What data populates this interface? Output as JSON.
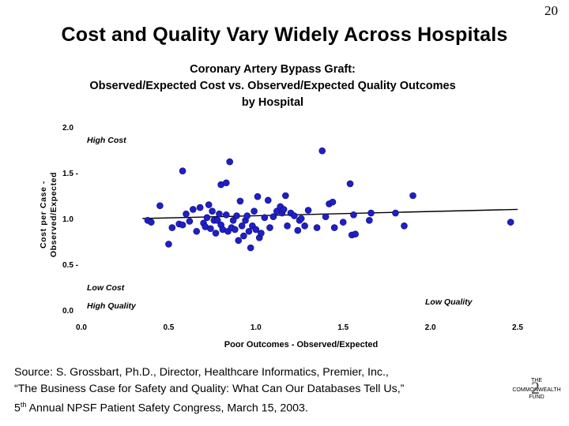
{
  "slide": {
    "number": "20",
    "title": "Cost and Quality Vary Widely Across Hospitals"
  },
  "chart_data": {
    "type": "scatter",
    "title_lines": [
      "Coronary Artery Bypass Graft:",
      "Observed/Expected Cost vs. Observed/Expected Quality Outcomes",
      "by Hospital"
    ],
    "xlabel": "Poor Outcomes - Observed/Expected",
    "ylabel_lines": [
      "Cost per Case -",
      "Observed/Expected"
    ],
    "xlim": [
      0.0,
      2.5
    ],
    "ylim": [
      0.0,
      2.0
    ],
    "x_ticks": [
      "0.0",
      "0.5",
      "1.0",
      "1.5",
      "2.0",
      "2.5"
    ],
    "y_ticks": [
      "0.0",
      "0.5 -",
      "1.0",
      "1.5 -",
      "2.0"
    ],
    "annotations": {
      "high_cost": "High Cost",
      "low_cost": "Low Cost",
      "high_quality": "High Quality",
      "low_quality": "Low Quality"
    },
    "marker_color": "#1f1fc8",
    "trendline": {
      "x": [
        0.35,
        2.5
      ],
      "y": [
        1.0,
        1.1
      ]
    },
    "points": [
      [
        0.38,
        0.98
      ],
      [
        0.4,
        0.96
      ],
      [
        0.45,
        1.14
      ],
      [
        0.5,
        0.72
      ],
      [
        0.52,
        0.9
      ],
      [
        0.56,
        0.94
      ],
      [
        0.58,
        1.52
      ],
      [
        0.58,
        0.93
      ],
      [
        0.6,
        1.05
      ],
      [
        0.62,
        0.97
      ],
      [
        0.64,
        1.1
      ],
      [
        0.66,
        0.86
      ],
      [
        0.68,
        1.12
      ],
      [
        0.7,
        0.95
      ],
      [
        0.71,
        0.91
      ],
      [
        0.72,
        1.01
      ],
      [
        0.73,
        1.15
      ],
      [
        0.74,
        0.89
      ],
      [
        0.75,
        1.08
      ],
      [
        0.76,
        0.98
      ],
      [
        0.77,
        0.84
      ],
      [
        0.78,
        0.98
      ],
      [
        0.79,
        1.05
      ],
      [
        0.8,
        1.37
      ],
      [
        0.8,
        0.93
      ],
      [
        0.81,
        0.88
      ],
      [
        0.83,
        1.04
      ],
      [
        0.83,
        1.39
      ],
      [
        0.84,
        0.86
      ],
      [
        0.85,
        1.62
      ],
      [
        0.86,
        0.9
      ],
      [
        0.87,
        0.98
      ],
      [
        0.88,
        0.88
      ],
      [
        0.89,
        1.03
      ],
      [
        0.9,
        0.76
      ],
      [
        0.91,
        1.19
      ],
      [
        0.92,
        0.92
      ],
      [
        0.93,
        0.81
      ],
      [
        0.94,
        0.98
      ],
      [
        0.95,
        1.03
      ],
      [
        0.96,
        0.86
      ],
      [
        0.97,
        0.68
      ],
      [
        0.98,
        0.92
      ],
      [
        0.99,
        1.08
      ],
      [
        1.0,
        0.88
      ],
      [
        1.01,
        1.24
      ],
      [
        1.02,
        0.79
      ],
      [
        1.03,
        0.84
      ],
      [
        1.05,
        1.01
      ],
      [
        1.07,
        1.2
      ],
      [
        1.08,
        0.9
      ],
      [
        1.1,
        1.02
      ],
      [
        1.12,
        1.08
      ],
      [
        1.14,
        1.13
      ],
      [
        1.15,
        1.06
      ],
      [
        1.16,
        1.1
      ],
      [
        1.17,
        1.25
      ],
      [
        1.18,
        0.92
      ],
      [
        1.2,
        1.06
      ],
      [
        1.22,
        1.03
      ],
      [
        1.24,
        0.87
      ],
      [
        1.25,
        0.98
      ],
      [
        1.26,
        1.0
      ],
      [
        1.28,
        0.92
      ],
      [
        1.3,
        1.09
      ],
      [
        1.35,
        0.9
      ],
      [
        1.38,
        1.74
      ],
      [
        1.4,
        1.02
      ],
      [
        1.42,
        1.16
      ],
      [
        1.44,
        1.18
      ],
      [
        1.45,
        0.9
      ],
      [
        1.5,
        0.96
      ],
      [
        1.54,
        1.38
      ],
      [
        1.55,
        0.82
      ],
      [
        1.56,
        1.04
      ],
      [
        1.57,
        0.83
      ],
      [
        1.65,
        0.98
      ],
      [
        1.66,
        1.06
      ],
      [
        1.8,
        1.06
      ],
      [
        1.85,
        0.92
      ],
      [
        1.9,
        1.25
      ],
      [
        2.46,
        0.96
      ]
    ]
  },
  "source": {
    "line1": "Source: S. Grossbart, Ph.D., Director, Healthcare Informatics, Premier, Inc.,",
    "line2": "“The Business Case for Safety and Quality: What Can Our Databases Tell Us,”",
    "line3_num": "5",
    "line3_sup": "th",
    "line3_rest": " Annual NPSF Patient Safety Congress, March 15, 2003."
  },
  "logo": {
    "line1": "THE",
    "line2": "COMMONWEALTH",
    "line3": "FUND",
    "mark": "2"
  }
}
